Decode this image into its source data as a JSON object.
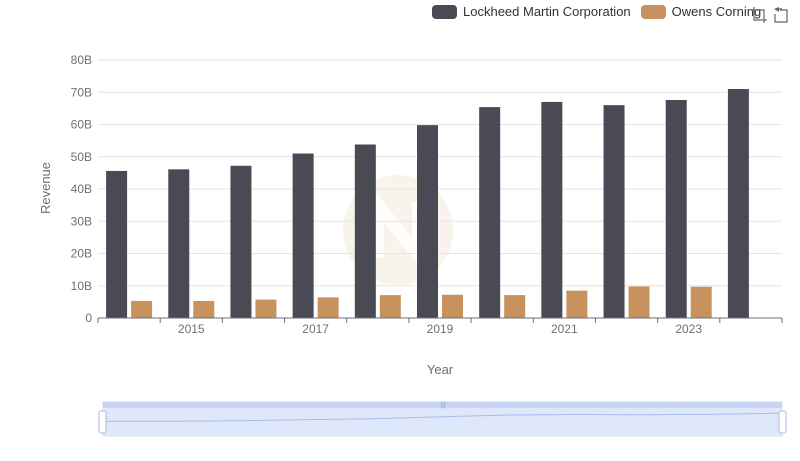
{
  "chart_data": {
    "type": "bar",
    "xlabel": "Year",
    "ylabel": "Revenue",
    "x_tick_labels": [
      "2015",
      "2017",
      "2019",
      "2021",
      "2023"
    ],
    "categories": [
      "2014",
      "2015",
      "2016",
      "2017",
      "2018",
      "2019",
      "2020",
      "2021",
      "2022",
      "2023",
      "2024"
    ],
    "series": [
      {
        "name": "Lockheed Martin Corporation",
        "color": "#4a4a55",
        "values": [
          45.6,
          46.1,
          47.2,
          51.0,
          53.8,
          59.8,
          65.4,
          67.0,
          66.0,
          67.6,
          71.0
        ]
      },
      {
        "name": "Owens Corning",
        "color": "#c8925f",
        "values": [
          5.3,
          5.3,
          5.7,
          6.4,
          7.1,
          7.2,
          7.1,
          8.5,
          9.8,
          9.7,
          null
        ]
      }
    ],
    "y_ticks": [
      "0",
      "10B",
      "20B",
      "30B",
      "40B",
      "50B",
      "60B",
      "70B",
      "80B"
    ],
    "ylim": [
      0,
      80
    ],
    "value_unit": "B",
    "grid": true,
    "legend_position": "top-right"
  },
  "toolbox": {
    "icons": [
      "zoom-icon",
      "restore-icon"
    ]
  },
  "datazoom": {
    "range": [
      0,
      100
    ]
  }
}
